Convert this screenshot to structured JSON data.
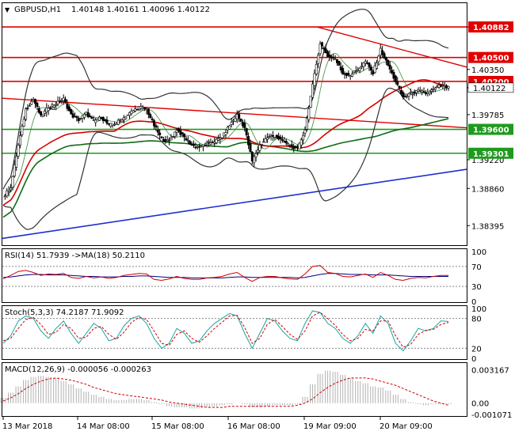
{
  "chart_data": [
    {
      "type": "candlestick",
      "symbol_label": "GBPUSD,H1",
      "ohlc_label": "1.40148 1.40161 1.40096 1.40122",
      "ylim": [
        1.3815,
        1.4118
      ],
      "price_ticks": [
        "1.40882",
        "1.40350",
        "1.40122",
        "1.39785",
        "1.39220",
        "1.38860",
        "1.38395"
      ],
      "x_ticks": [
        "13 Mar 2018",
        "14 Mar 08:00",
        "15 Mar 08:00",
        "16 Mar 08:00",
        "19 Mar 09:00",
        "20 Mar 09:00"
      ],
      "close_path": [
        1.3875,
        1.3888,
        1.394,
        1.3985,
        1.3998,
        1.3976,
        1.3988,
        1.3992,
        1.3998,
        1.3978,
        1.3972,
        1.398,
        1.397,
        1.3975,
        1.3965,
        1.3968,
        1.3975,
        1.3982,
        1.3988,
        1.3985,
        1.3965,
        1.3948,
        1.3945,
        1.396,
        1.395,
        1.394,
        1.3938,
        1.3942,
        1.3945,
        1.395,
        1.3965,
        1.3978,
        1.3962,
        1.392,
        1.394,
        1.395,
        1.3952,
        1.3945,
        1.394,
        1.3935,
        1.396,
        1.4015,
        1.4068,
        1.4052,
        1.4048,
        1.403,
        1.4028,
        1.4035,
        1.4045,
        1.403,
        1.406,
        1.404,
        1.402,
        1.4,
        1.4005,
        1.4008,
        1.4005,
        1.401,
        1.4015,
        1.4012
      ],
      "levels": [
        {
          "label": "1.40882",
          "price": 1.40882,
          "color": "#e00000"
        },
        {
          "label": "1.40500",
          "price": 1.405,
          "color": "#e00000"
        },
        {
          "label": "1.40200",
          "price": 1.402,
          "color": "#e00000"
        },
        {
          "label": "1.39600",
          "price": 1.396,
          "color": "#1f9a1f"
        },
        {
          "label": "1.39301",
          "price": 1.39301,
          "color": "#1f9a1f"
        }
      ],
      "current_price_label": "1.40122"
    },
    {
      "type": "line",
      "label": "RSI(14) 51.7939  ->MA(18) 50.2110",
      "ylim": [
        0,
        100
      ],
      "ticks": [
        "100",
        "70",
        "30",
        "0"
      ],
      "rsi": [
        45,
        52,
        60,
        62,
        58,
        52,
        55,
        54,
        56,
        48,
        46,
        50,
        47,
        49,
        46,
        48,
        52,
        54,
        56,
        55,
        44,
        42,
        45,
        50,
        46,
        44,
        44,
        47,
        48,
        50,
        55,
        58,
        48,
        40,
        48,
        50,
        50,
        47,
        45,
        44,
        55,
        70,
        72,
        58,
        56,
        50,
        49,
        52,
        55,
        48,
        58,
        52,
        44,
        42,
        46,
        48,
        47,
        50,
        52,
        52
      ],
      "ma": [
        48,
        49,
        51,
        53,
        54,
        54,
        53,
        53,
        53,
        52,
        51,
        50,
        50,
        49,
        49,
        49,
        50,
        50,
        51,
        51,
        50,
        49,
        48,
        48,
        48,
        47,
        47,
        47,
        47,
        47,
        48,
        49,
        49,
        48,
        48,
        48,
        48,
        48,
        48,
        47,
        48,
        51,
        54,
        56,
        56,
        55,
        54,
        54,
        54,
        53,
        53,
        53,
        52,
        51,
        50,
        50,
        50,
        50,
        50,
        50
      ]
    },
    {
      "type": "line",
      "label": "Stoch(5,3,3) 74.2187 71.9092",
      "ylim": [
        0,
        100
      ],
      "ticks": [
        "100",
        "80",
        "20",
        "0"
      ],
      "main": [
        30,
        45,
        75,
        85,
        80,
        55,
        40,
        60,
        75,
        50,
        30,
        50,
        70,
        60,
        35,
        40,
        65,
        80,
        85,
        70,
        40,
        20,
        30,
        60,
        50,
        30,
        35,
        55,
        70,
        80,
        90,
        85,
        50,
        20,
        50,
        80,
        75,
        55,
        40,
        35,
        70,
        95,
        92,
        70,
        60,
        40,
        30,
        45,
        70,
        50,
        85,
        70,
        30,
        15,
        35,
        60,
        55,
        60,
        75,
        74
      ],
      "signal": [
        35,
        40,
        60,
        78,
        82,
        68,
        48,
        52,
        68,
        60,
        40,
        42,
        60,
        64,
        48,
        38,
        52,
        72,
        82,
        78,
        55,
        30,
        26,
        48,
        55,
        40,
        32,
        45,
        60,
        72,
        85,
        86,
        62,
        30,
        40,
        68,
        78,
        64,
        48,
        38,
        55,
        85,
        92,
        80,
        66,
        48,
        35,
        40,
        58,
        55,
        75,
        75,
        45,
        22,
        28,
        48,
        56,
        58,
        68,
        72
      ]
    },
    {
      "type": "bar",
      "label": "MACD(12,26,9) -0.000056 -0.000263",
      "ylim": [
        -0.00115,
        0.0036
      ],
      "ticks": [
        "0.003167",
        "0.00",
        "-0.001071"
      ],
      "hist": [
        0.0005,
        0.001,
        0.0016,
        0.0022,
        0.0025,
        0.0026,
        0.0025,
        0.0024,
        0.0021,
        0.0018,
        0.0014,
        0.0011,
        0.0008,
        0.0006,
        0.0004,
        0.0003,
        0.0003,
        0.0004,
        0.0004,
        0.0003,
        0.0001,
        -0.0001,
        -0.0003,
        -0.0004,
        -0.0004,
        -0.0005,
        -0.0005,
        -0.0004,
        -0.0003,
        -0.0002,
        -0.0001,
        0.0,
        -0.0001,
        -0.0004,
        -0.0004,
        -0.0003,
        -0.0002,
        -0.0002,
        -0.0002,
        -0.0001,
        0.0006,
        0.0018,
        0.0028,
        0.0031,
        0.003,
        0.0027,
        0.0024,
        0.0021,
        0.0019,
        0.0016,
        0.0015,
        0.0012,
        0.0008,
        0.0004,
        0.0001,
        -0.0001,
        -0.0002,
        -0.0001,
        -0.0001,
        -0.0001
      ],
      "signal": [
        0.0002,
        0.0005,
        0.0009,
        0.0014,
        0.0018,
        0.0021,
        0.0023,
        0.0024,
        0.0023,
        0.0022,
        0.002,
        0.0018,
        0.0015,
        0.0013,
        0.0011,
        0.0009,
        0.0008,
        0.0007,
        0.0006,
        0.0005,
        0.0004,
        0.0003,
        0.0001,
        0.0,
        -0.0001,
        -0.0002,
        -0.0003,
        -0.0004,
        -0.0004,
        -0.0004,
        -0.0003,
        -0.0003,
        -0.0003,
        -0.0003,
        -0.0003,
        -0.0003,
        -0.0003,
        -0.0003,
        -0.0003,
        -0.0002,
        0.0,
        0.0004,
        0.001,
        0.0015,
        0.0019,
        0.0022,
        0.0024,
        0.0024,
        0.0024,
        0.0023,
        0.0021,
        0.0019,
        0.0017,
        0.0014,
        0.0011,
        0.0008,
        0.0005,
        0.0002,
        0.0,
        -0.0002
      ]
    }
  ]
}
